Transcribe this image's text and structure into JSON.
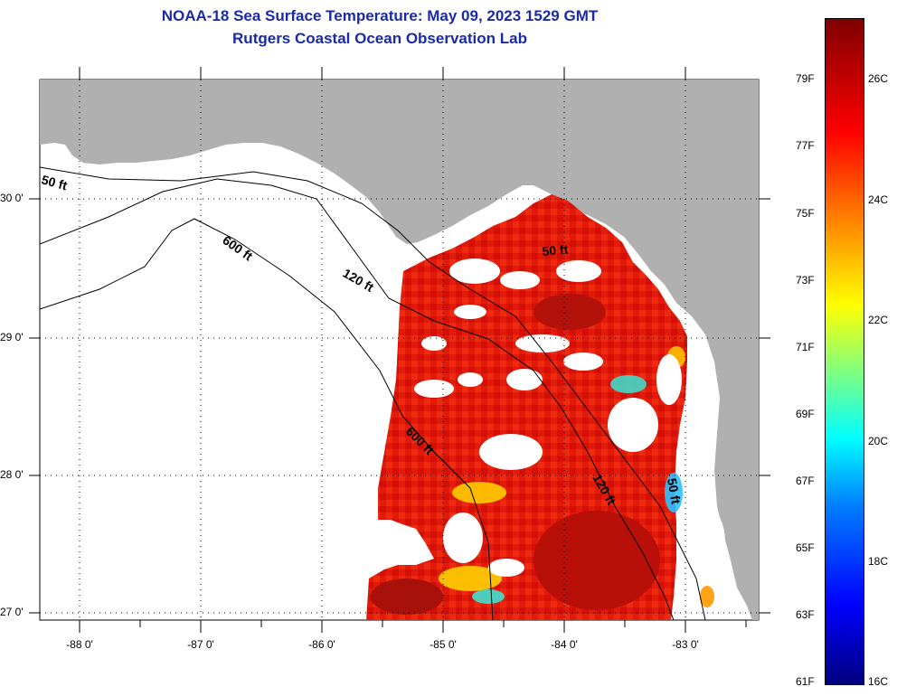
{
  "header": {
    "title": "NOAA-18 Sea Surface Temperature:  May 09, 2023 1529 GMT",
    "subtitle": "Rutgers Coastal Ocean Observation Lab"
  },
  "map": {
    "land_color": "#b0b0b0",
    "no_data_color": "#ffffff",
    "lat_labels": [
      "30 0'",
      "29 0'",
      "28 0'",
      "27 0'"
    ],
    "lon_labels": [
      "-88 0'",
      "-87 0'",
      "-86 0'",
      "-85 0'",
      "-84 0'",
      "-83 0'"
    ],
    "contour_labels": [
      "50 ft",
      "600 ft",
      "120 ft",
      "50 ft",
      "600 ft",
      "120 ft",
      "50 ft"
    ]
  },
  "colorbar": {
    "fahrenheit_labels": [
      "79F",
      "77F",
      "75F",
      "73F",
      "71F",
      "69F",
      "67F",
      "65F",
      "63F",
      "61F"
    ],
    "celsius_labels": [
      "26C",
      "24C",
      "22C",
      "20C",
      "18C",
      "16C"
    ],
    "colors": [
      "#00007f",
      "#0000ff",
      "#0080ff",
      "#00ffff",
      "#80ff80",
      "#ffff00",
      "#ff8000",
      "#ff0000",
      "#7f0000"
    ]
  }
}
